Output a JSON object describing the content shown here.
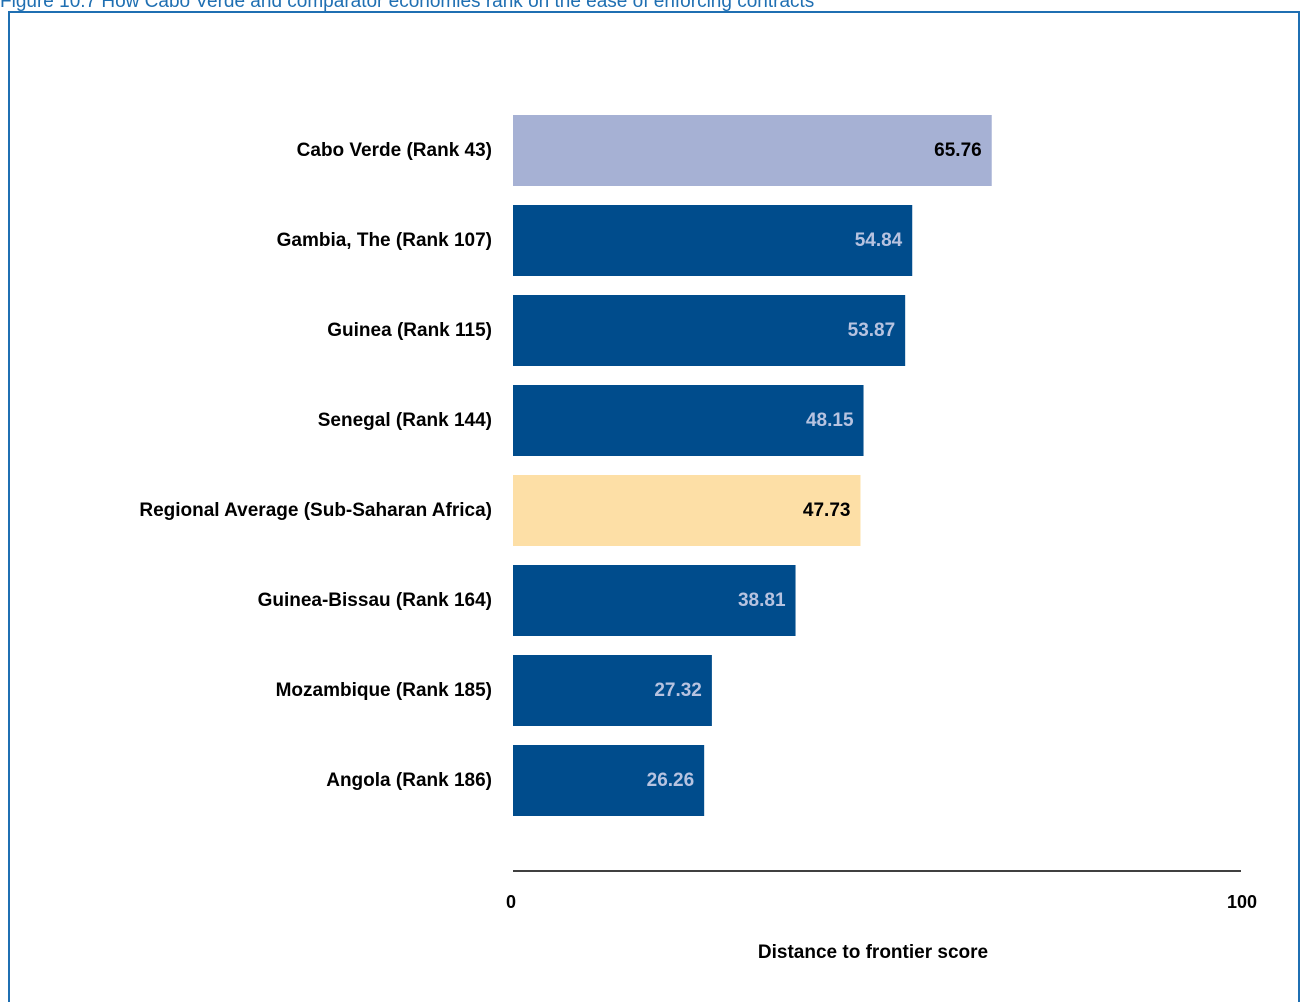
{
  "figure": {
    "title": "Figure 10.7 How Cabo Verde and comparator economies rank on the ease of enforcing contracts"
  },
  "colors": {
    "highlight": "#a6b1d4",
    "regional": "#fddfa6",
    "default": "#004c8c",
    "frame": "#1f6fb2",
    "label_dark": "#000000",
    "label_light": "#b7c3e0"
  },
  "chart_data": {
    "type": "bar",
    "orientation": "horizontal",
    "categories": [
      "Cabo Verde (Rank 43)",
      "Gambia, The (Rank 107)",
      "Guinea (Rank 115)",
      "Senegal (Rank 144)",
      "Regional Average (Sub-Saharan Africa)",
      "Guinea-Bissau (Rank 164)",
      "Mozambique (Rank 185)",
      "Angola (Rank 186)"
    ],
    "values": [
      65.76,
      54.84,
      53.87,
      48.15,
      47.73,
      38.81,
      27.32,
      26.26
    ],
    "value_labels": [
      "65.76",
      "54.84",
      "53.87",
      "48.15",
      "47.73",
      "38.81",
      "27.32",
      "26.26"
    ],
    "bar_styles": [
      "highlight",
      "default",
      "default",
      "default",
      "regional",
      "default",
      "default",
      "default"
    ],
    "xlabel": "Distance to frontier score",
    "xlim": [
      0,
      100
    ],
    "xticks": [
      "0",
      "100"
    ],
    "grid": false,
    "legend": "none"
  }
}
